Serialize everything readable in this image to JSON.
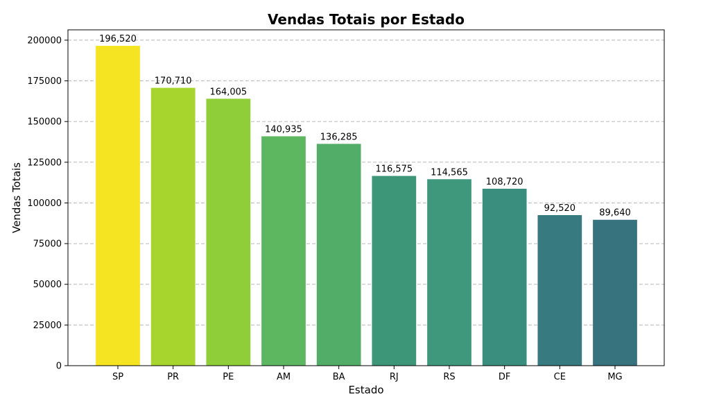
{
  "chart_data": {
    "type": "bar",
    "title": "Vendas Totais por Estado",
    "xlabel": "Estado",
    "ylabel": "Vendas Totais",
    "categories": [
      "SP",
      "PR",
      "PE",
      "AM",
      "BA",
      "RJ",
      "RS",
      "DF",
      "CE",
      "MG"
    ],
    "values": [
      196520,
      170710,
      164005,
      140935,
      136285,
      116575,
      114565,
      108720,
      92520,
      89640
    ],
    "value_labels": [
      "196,520",
      "170,710",
      "164,005",
      "140,935",
      "136,285",
      "116,575",
      "114,565",
      "108,720",
      "92,520",
      "89,640"
    ],
    "colors": [
      "#f5e422",
      "#a8d52d",
      "#8fce38",
      "#5db760",
      "#52ad68",
      "#3d9678",
      "#3f987c",
      "#3a8e7e",
      "#377a80",
      "#36737f"
    ],
    "yticks": [
      "0",
      "25000",
      "50000",
      "75000",
      "100000",
      "125000",
      "150000",
      "175000",
      "200000"
    ],
    "ylim": [
      0,
      206346
    ],
    "grid": "y, dashed",
    "legend": "none"
  }
}
